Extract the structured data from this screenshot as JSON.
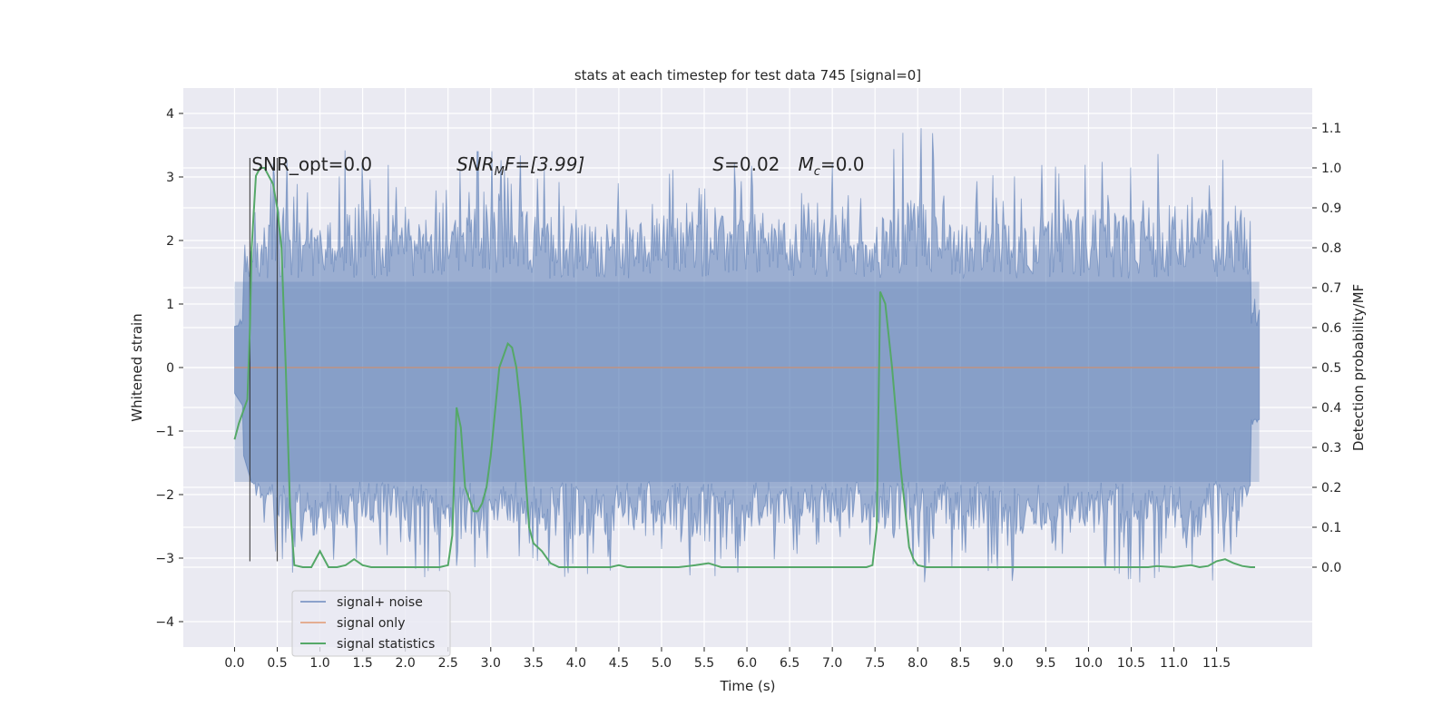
{
  "chart_data": {
    "type": "line",
    "title": "stats at each timestep for test data 745 [signal=0]",
    "xlabel": "Time (s)",
    "ylabel_left": "Whitened strain",
    "ylabel_right": "Detection probability/MF",
    "xlim": [
      -0.6,
      12.62
    ],
    "ylim_left": [
      -4.4,
      4.4
    ],
    "ylim_right": [
      -0.2,
      1.2
    ],
    "x_ticks": [
      0.0,
      0.5,
      1.0,
      1.5,
      2.0,
      2.5,
      3.0,
      3.5,
      4.0,
      4.5,
      5.0,
      5.5,
      6.0,
      6.5,
      7.0,
      7.5,
      8.0,
      8.5,
      9.0,
      9.5,
      10.0,
      10.5,
      11.0,
      11.5
    ],
    "x_tick_labels": [
      "0.0",
      "0.5",
      "1.0",
      "1.5",
      "2.0",
      "2.5",
      "3.0",
      "3.5",
      "4.0",
      "4.5",
      "5.0",
      "5.5",
      "6.0",
      "6.5",
      "7.0",
      "7.5",
      "8.0",
      "8.5",
      "9.0",
      "9.5",
      "10.0",
      "10.5",
      "11.0",
      "11.5"
    ],
    "y_left_ticks": [
      -4,
      -3,
      -2,
      -1,
      0,
      1,
      2,
      3,
      4
    ],
    "y_left_tick_labels": [
      "−4",
      "−3",
      "−2",
      "−1",
      "0",
      "1",
      "2",
      "3",
      "4"
    ],
    "y_right_ticks": [
      0.0,
      0.1,
      0.2,
      0.3,
      0.4,
      0.5,
      0.6,
      0.7,
      0.8,
      0.9,
      1.0,
      1.1
    ],
    "y_right_tick_labels": [
      "0.0",
      "0.1",
      "0.2",
      "0.3",
      "0.4",
      "0.5",
      "0.6",
      "0.7",
      "0.8",
      "0.9",
      "1.0",
      "1.1"
    ],
    "grid": true,
    "legend_position": "lower-left",
    "colors": {
      "background": "#eaeaf2",
      "grid": "#ffffff",
      "noise": "#4c72b0",
      "signal": "#dd8452",
      "stats": "#55a868",
      "marker": "#262626"
    },
    "series": [
      {
        "name": "signal+ noise",
        "axis": "left",
        "envelope_x": [
          0.0,
          0.5,
          1.0,
          1.5,
          2.0,
          2.5,
          3.0,
          3.5,
          4.0,
          4.5,
          5.0,
          5.5,
          6.0,
          6.5,
          7.0,
          7.5,
          8.0,
          8.5,
          9.0,
          9.5,
          10.0,
          10.5,
          11.0,
          11.5,
          12.0
        ],
        "max": [
          1.5,
          3.5,
          2.8,
          3.9,
          2.9,
          2.9,
          3.7,
          3.3,
          3.0,
          3.0,
          3.2,
          3.1,
          3.4,
          3.1,
          3.3,
          3.0,
          4.1,
          3.2,
          3.0,
          3.3,
          3.5,
          3.2,
          3.6,
          3.5,
          3.3
        ],
        "min": [
          -0.9,
          -3.2,
          -3.4,
          -3.0,
          -3.0,
          -3.7,
          -3.0,
          -3.1,
          -3.6,
          -3.2,
          -3.0,
          -3.7,
          -3.1,
          -3.0,
          -3.0,
          -3.0,
          -3.7,
          -3.1,
          -3.5,
          -3.0,
          -3.0,
          -3.4,
          -3.3,
          -3.5,
          -1.9
        ]
      },
      {
        "name": "signal only",
        "axis": "left",
        "x": [
          0.0,
          12.0
        ],
        "y": [
          0.0,
          0.0
        ]
      },
      {
        "name": "signal statistics",
        "axis": "right",
        "x": [
          0.0,
          0.05,
          0.1,
          0.15,
          0.18,
          0.2,
          0.25,
          0.3,
          0.35,
          0.4,
          0.45,
          0.5,
          0.55,
          0.6,
          0.65,
          0.7,
          0.8,
          0.9,
          1.0,
          1.1,
          1.2,
          1.3,
          1.4,
          1.5,
          1.6,
          1.8,
          2.0,
          2.2,
          2.4,
          2.5,
          2.55,
          2.6,
          2.65,
          2.7,
          2.75,
          2.8,
          2.85,
          2.9,
          2.95,
          3.0,
          3.1,
          3.2,
          3.25,
          3.3,
          3.35,
          3.4,
          3.45,
          3.5,
          3.55,
          3.6,
          3.7,
          3.75,
          3.8,
          3.9,
          4.0,
          4.2,
          4.4,
          4.5,
          4.6,
          4.8,
          5.0,
          5.2,
          5.4,
          5.55,
          5.7,
          5.9,
          6.2,
          6.5,
          7.0,
          7.2,
          7.4,
          7.47,
          7.52,
          7.56,
          7.62,
          7.7,
          7.8,
          7.9,
          7.95,
          8.0,
          8.1,
          8.5,
          9.0,
          9.5,
          10.0,
          10.5,
          10.7,
          10.8,
          11.0,
          11.1,
          11.2,
          11.3,
          11.4,
          11.5,
          11.6,
          11.7,
          11.8,
          11.9,
          11.95
        ],
        "y": [
          0.32,
          0.36,
          0.39,
          0.42,
          0.6,
          0.8,
          0.98,
          1.0,
          1.0,
          0.98,
          0.96,
          0.9,
          0.8,
          0.5,
          0.15,
          0.005,
          0.0,
          0.0,
          0.04,
          0.0,
          0.0,
          0.005,
          0.02,
          0.005,
          0.0,
          0.0,
          0.0,
          0.0,
          0.0,
          0.005,
          0.08,
          0.4,
          0.35,
          0.2,
          0.17,
          0.14,
          0.14,
          0.16,
          0.2,
          0.28,
          0.5,
          0.56,
          0.55,
          0.5,
          0.4,
          0.25,
          0.1,
          0.06,
          0.05,
          0.04,
          0.01,
          0.005,
          0.0,
          0.0,
          0.0,
          0.0,
          0.0,
          0.005,
          0.0,
          0.0,
          0.0,
          0.0,
          0.005,
          0.01,
          0.0,
          0.0,
          0.0,
          0.0,
          0.0,
          0.0,
          0.0,
          0.005,
          0.1,
          0.69,
          0.66,
          0.5,
          0.25,
          0.05,
          0.02,
          0.005,
          0.0,
          0.0,
          0.0,
          0.0,
          0.0,
          0.0,
          0.0,
          0.003,
          0.0,
          0.003,
          0.005,
          0.0,
          0.003,
          0.015,
          0.02,
          0.01,
          0.003,
          0.0,
          0.0
        ]
      }
    ],
    "markers": {
      "x": [
        0.18,
        0.5
      ],
      "y_top": 3.3,
      "y_bottom": -3.05
    },
    "annotations": [
      {
        "text": "SNR_opt=0.0",
        "x": 0.2,
        "y": 3.1
      },
      {
        "text": "SNR",
        "sub": "M",
        "suffix": "F=[3.99]",
        "italic": true,
        "x": 2.6,
        "y": 3.1
      },
      {
        "text": "S",
        "suffix": "=0.02",
        "italic": true,
        "x": 5.6,
        "y": 3.1
      },
      {
        "text": "M",
        "sub": "c",
        "suffix": "=0.0",
        "italic": true,
        "x": 6.6,
        "y": 3.1
      }
    ]
  }
}
